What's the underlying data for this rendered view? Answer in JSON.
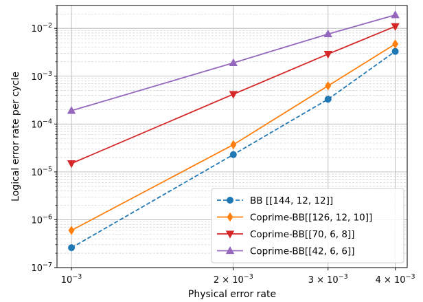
{
  "chart_data": {
    "type": "line",
    "xlabel": "Physical error rate",
    "ylabel": "Logical error rate per cycle",
    "x_scale": "log",
    "y_scale": "log",
    "xlim": [
      0.00094,
      0.00421
    ],
    "ylim": [
      1e-07,
      0.03
    ],
    "x": [
      0.001,
      0.002,
      0.003,
      0.004
    ],
    "x_ticks": [
      {
        "value": 0.001,
        "base": "10",
        "exp": "−3",
        "coef": ""
      },
      {
        "value": 0.002,
        "base": "10",
        "exp": "−3",
        "coef": "2 × "
      },
      {
        "value": 0.003,
        "base": "10",
        "exp": "−3",
        "coef": "3 × "
      },
      {
        "value": 0.004,
        "base": "10",
        "exp": "−3",
        "coef": "4 × "
      }
    ],
    "y_ticks": [
      {
        "value": 1e-07,
        "base": "10",
        "exp": "−7"
      },
      {
        "value": 1e-06,
        "base": "10",
        "exp": "−6"
      },
      {
        "value": 1e-05,
        "base": "10",
        "exp": "−5"
      },
      {
        "value": 0.0001,
        "base": "10",
        "exp": "−4"
      },
      {
        "value": 0.001,
        "base": "10",
        "exp": "−3"
      },
      {
        "value": 0.01,
        "base": "10",
        "exp": "−2"
      }
    ],
    "grid": true,
    "legend_position": "lower-right",
    "series": [
      {
        "name": "BB [[144, 12, 12]]",
        "color": "#1f77b4",
        "marker": "circle",
        "linestyle": "dashed",
        "values": [
          2.6e-07,
          2.3e-05,
          0.00033,
          0.0033
        ]
      },
      {
        "name": "Coprime-BB[[126, 12, 10]]",
        "color": "#ff7f0e",
        "marker": "diamond",
        "linestyle": "solid",
        "values": [
          6e-07,
          3.7e-05,
          0.00063,
          0.0047
        ]
      },
      {
        "name": "Coprime-BB[[70, 6, 8]]",
        "color": "#d62728",
        "marker": "triangle-down",
        "linestyle": "solid",
        "values": [
          1.5e-05,
          0.00042,
          0.0029,
          0.011
        ]
      },
      {
        "name": "Coprime-BB[[42, 6, 6]]",
        "color": "#9467bd",
        "marker": "triangle-up",
        "linestyle": "solid",
        "values": [
          0.00019,
          0.0019,
          0.0076,
          0.019
        ]
      }
    ]
  }
}
